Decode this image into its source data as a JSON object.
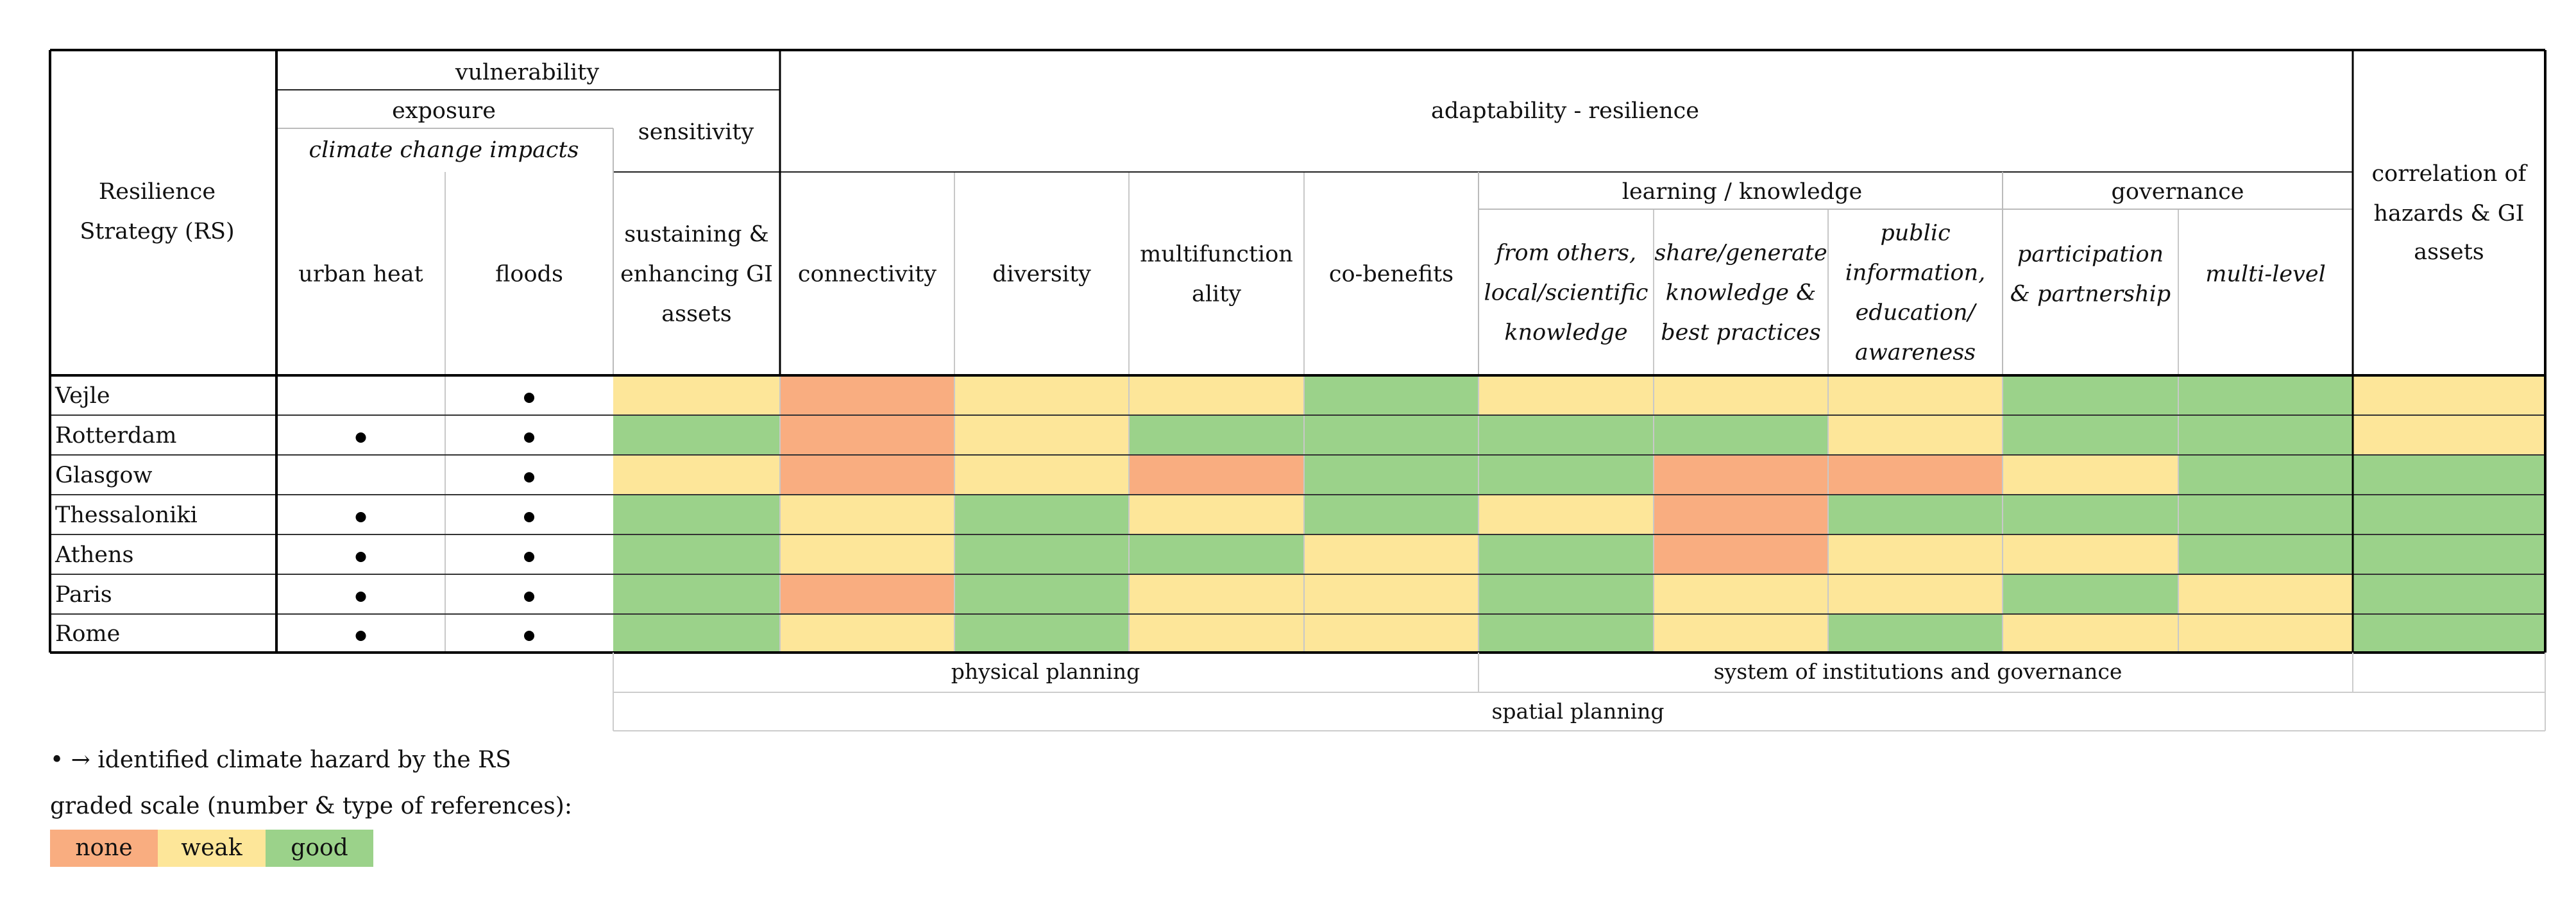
{
  "header": {
    "row_header": [
      "Resilience",
      "Strategy (RS)"
    ],
    "vulnerability": "vulnerability",
    "exposure": "exposure",
    "climate_change_impacts": "climate change impacts",
    "sensitivity": "sensitivity",
    "adaptability": "adaptability - resilience",
    "learning": "learning / knowledge",
    "governance": "governance",
    "correlation": [
      "correlation of",
      "hazards & GI",
      "assets"
    ]
  },
  "columns": [
    {
      "key": "urban_heat",
      "lines": [
        "urban heat"
      ],
      "italic": false
    },
    {
      "key": "floods",
      "lines": [
        "floods"
      ],
      "italic": false
    },
    {
      "key": "sustaining",
      "lines": [
        "sustaining &",
        "enhancing GI",
        "assets"
      ],
      "italic": false
    },
    {
      "key": "connectivity",
      "lines": [
        "connectivity"
      ],
      "italic": false
    },
    {
      "key": "diversity",
      "lines": [
        "diversity"
      ],
      "italic": false
    },
    {
      "key": "multifunctionality",
      "lines": [
        "multifunction",
        "ality"
      ],
      "italic": false
    },
    {
      "key": "co_benefits",
      "lines": [
        "co-benefits"
      ],
      "italic": false
    },
    {
      "key": "from_others",
      "lines": [
        "from others,",
        "local/scientific",
        "knowledge"
      ],
      "italic": true
    },
    {
      "key": "share_generate",
      "lines": [
        "share/generate",
        "knowledge &",
        "best practices"
      ],
      "italic": true
    },
    {
      "key": "public_info",
      "lines": [
        "public",
        "information,",
        "education/",
        "awareness"
      ],
      "italic": true
    },
    {
      "key": "participation",
      "lines": [
        "participation",
        "& partnership"
      ],
      "italic": true
    },
    {
      "key": "multi_level",
      "lines": [
        "multi-level"
      ],
      "italic": true
    },
    {
      "key": "correlation",
      "lines": [],
      "italic": false
    }
  ],
  "colors": {
    "none": "#f9ad80",
    "weak": "#fde699",
    "good": "#9bd28a"
  },
  "chart_data": {
    "type": "table",
    "rows": [
      {
        "city": "Vejle",
        "urban_heat": false,
        "floods": true,
        "grades": [
          "weak",
          "none",
          "weak",
          "weak",
          "good",
          "weak",
          "weak",
          "weak",
          "good",
          "good",
          "weak"
        ]
      },
      {
        "city": "Rotterdam",
        "urban_heat": true,
        "floods": true,
        "grades": [
          "good",
          "none",
          "weak",
          "good",
          "good",
          "good",
          "good",
          "weak",
          "good",
          "good",
          "weak"
        ]
      },
      {
        "city": "Glasgow",
        "urban_heat": false,
        "floods": true,
        "grades": [
          "weak",
          "none",
          "weak",
          "none",
          "good",
          "good",
          "none",
          "none",
          "weak",
          "good",
          "good"
        ]
      },
      {
        "city": "Thessaloniki",
        "urban_heat": true,
        "floods": true,
        "grades": [
          "good",
          "weak",
          "good",
          "weak",
          "good",
          "weak",
          "none",
          "good",
          "good",
          "good",
          "good"
        ]
      },
      {
        "city": "Athens",
        "urban_heat": true,
        "floods": true,
        "grades": [
          "good",
          "weak",
          "good",
          "good",
          "weak",
          "good",
          "none",
          "weak",
          "weak",
          "good",
          "good"
        ]
      },
      {
        "city": "Paris",
        "urban_heat": true,
        "floods": true,
        "grades": [
          "good",
          "none",
          "good",
          "weak",
          "weak",
          "good",
          "weak",
          "weak",
          "good",
          "weak",
          "good"
        ]
      },
      {
        "city": "Rome",
        "urban_heat": true,
        "floods": true,
        "grades": [
          "good",
          "weak",
          "good",
          "weak",
          "weak",
          "good",
          "weak",
          "good",
          "weak",
          "weak",
          "good"
        ]
      }
    ],
    "grade_levels": [
      "none",
      "weak",
      "good"
    ]
  },
  "bands": {
    "physical_planning": "physical planning",
    "institutions": "system of institutions and governance",
    "spatial_planning": "spatial planning"
  },
  "legend": {
    "hazard_note": "• → identified climate hazard by the RS",
    "scale_title": "graded scale (number & type of references):",
    "none": "none",
    "weak": "weak",
    "good": "good"
  }
}
